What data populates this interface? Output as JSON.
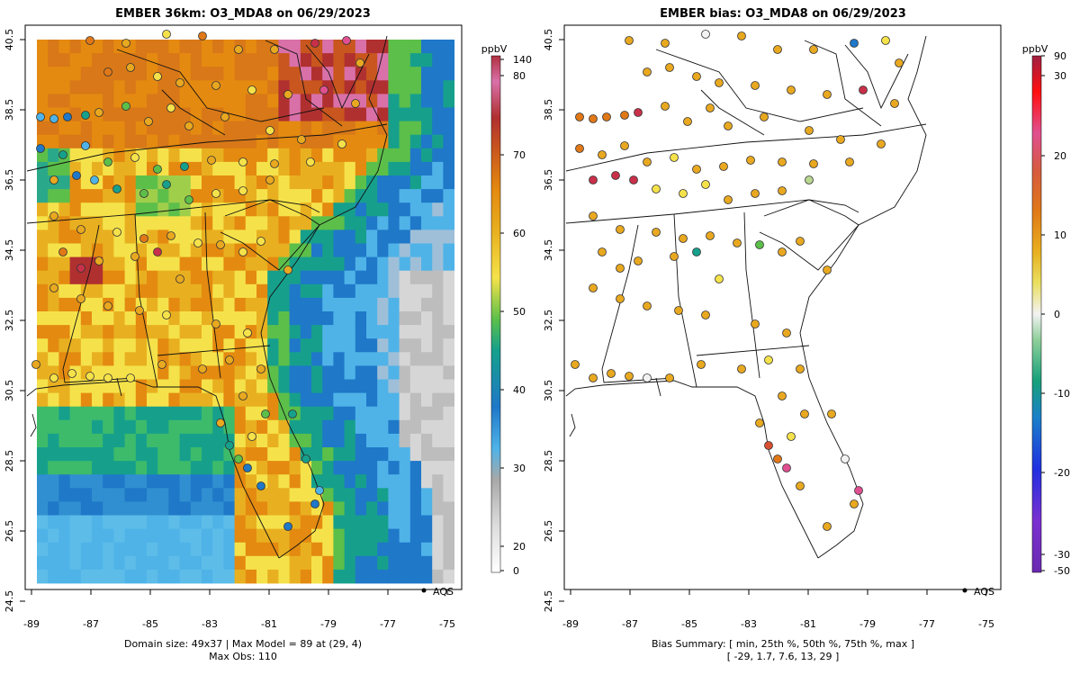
{
  "left_panel": {
    "title": "EMBER 36km: O3_MDA8 on 06/29/2023",
    "x_ticks": [
      "-89",
      "-87",
      "-85",
      "-83",
      "-81",
      "-79",
      "-77",
      "-75"
    ],
    "y_ticks": [
      "40.5",
      "38.5",
      "36.5",
      "34.5",
      "32.5",
      "30.5",
      "28.5",
      "26.5",
      "24.5"
    ],
    "legend_label": "AQS",
    "caption_line1": "Domain size: 49x37 | Max Model = 89 at (29, 4)",
    "caption_line2": "Max Obs: 110",
    "colorbar": {
      "unit": "ppbV",
      "ticks": [
        "140",
        "80",
        "70",
        "60",
        "50",
        "40",
        "30",
        "20",
        "0"
      ],
      "colors": [
        "#ffffff",
        "#cccccc",
        "#9a9a9a",
        "#4fb3e8",
        "#1f78c8",
        "#16a08c",
        "#5cbf4a",
        "#f5e24a",
        "#e8b020",
        "#e48a10",
        "#c8561e",
        "#b03030",
        "#d970a8"
      ]
    }
  },
  "right_panel": {
    "title": "EMBER bias: O3_MDA8 on 06/29/2023",
    "x_ticks": [
      "-89",
      "-87",
      "-85",
      "-83",
      "-81",
      "-79",
      "-77",
      "-75"
    ],
    "y_ticks": [
      "40.5",
      "38.5",
      "36.5",
      "34.5",
      "32.5",
      "30.5",
      "28.5",
      "26.5",
      "24.5"
    ],
    "legend_label": "AQS",
    "caption_line1": "Bias Summary: [ min, 25th %, 50th %, 75th %, max ]",
    "caption_line2": "[ -29,   1.7,   7.6,   13,   29 ]",
    "colorbar": {
      "unit": "ppbV",
      "ticks": [
        "90",
        "30",
        "20",
        "10",
        "0",
        "-10",
        "-20",
        "-30",
        "-50"
      ],
      "colors": [
        "#6a2ab0",
        "#2030e0",
        "#1a80c8",
        "#17a07a",
        "#8ecf9a",
        "#f2f2f2",
        "#eadf60",
        "#e8a820",
        "#d86020",
        "#e83030",
        "#ff0000",
        "#a02040"
      ]
    }
  }
}
